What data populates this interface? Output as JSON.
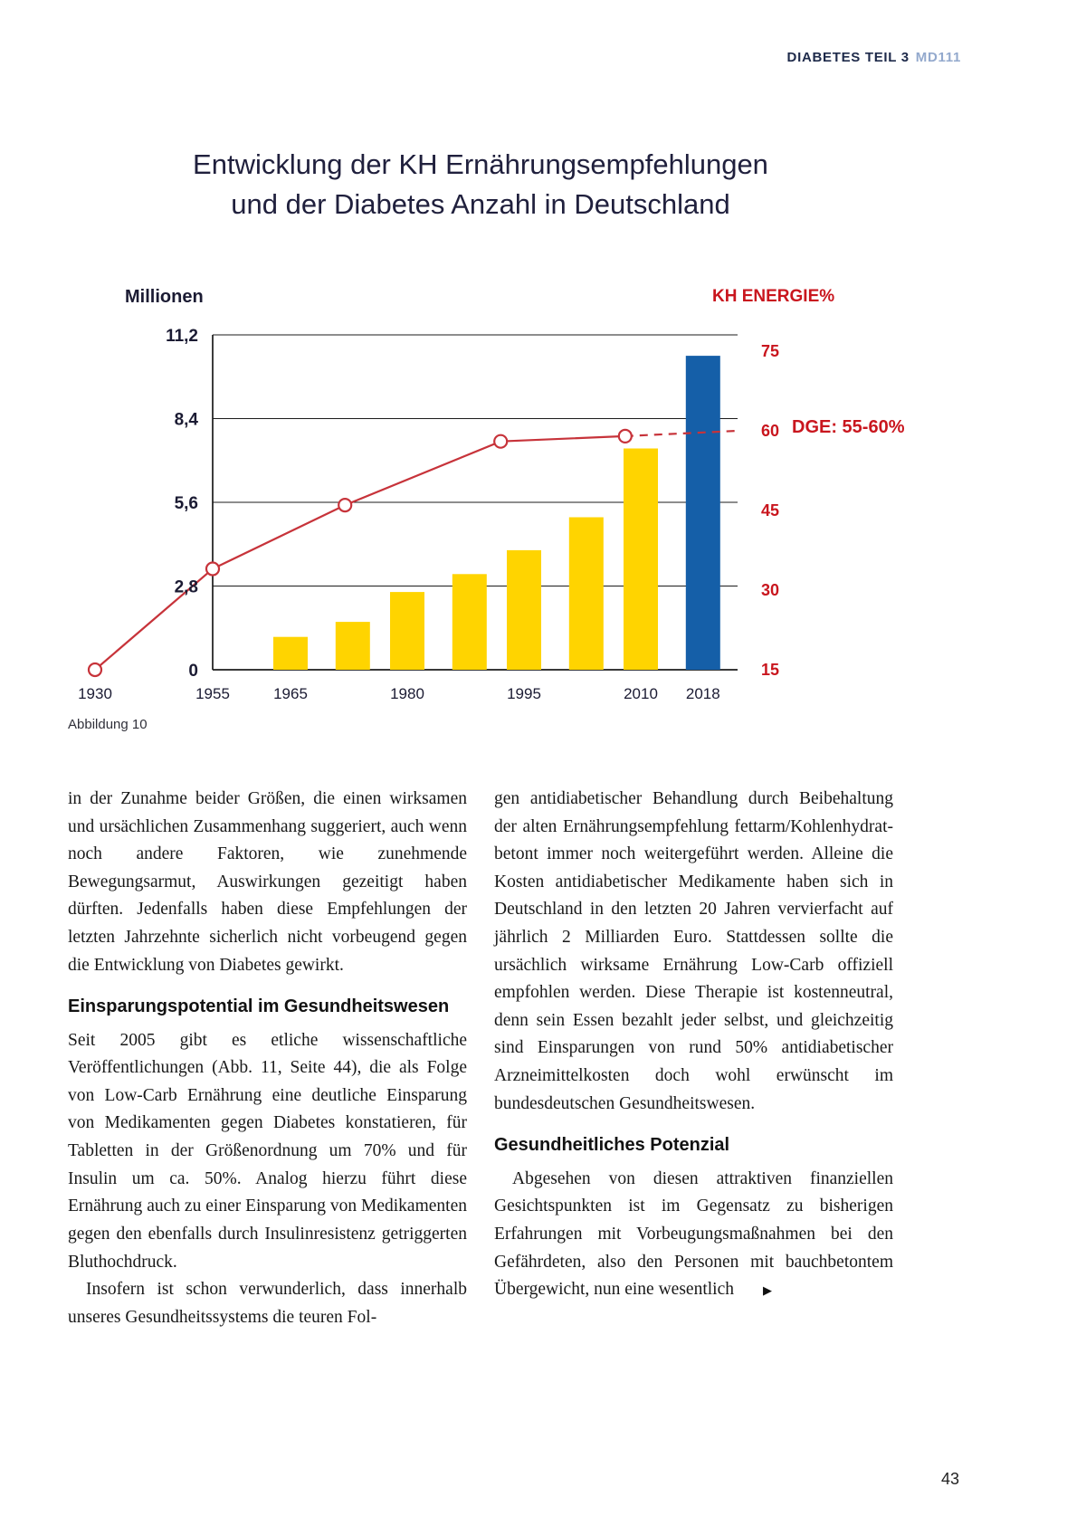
{
  "header": {
    "section": "DIABETES TEIL 3",
    "code": "MD111"
  },
  "title": {
    "line1": "Entwicklung der KH Ernährungsempfehlungen",
    "line2": "und der Diabetes Anzahl in Deutschland"
  },
  "figure": {
    "caption": "Abbildung 10"
  },
  "chart_data": {
    "type": "bar+line",
    "title": "Entwicklung der KH Ernährungsempfehlungen und der Diabetes Anzahl in Deutschland",
    "left_axis": {
      "label": "Millionen",
      "ticks": [
        "11,2",
        "8,4",
        "5,6",
        "2,8",
        "0"
      ],
      "tick_values": [
        11.2,
        8.4,
        5.6,
        2.8,
        0
      ],
      "max": 11.2
    },
    "right_axis": {
      "label": "KH ENERGIE%",
      "ticks": [
        "75",
        "60",
        "45",
        "30",
        "15"
      ],
      "tick_values": [
        75,
        60,
        45,
        30,
        15
      ],
      "min": 15,
      "max": 75
    },
    "x_tick_labels": [
      "1930",
      "1955",
      "1965",
      "1980",
      "1995",
      "2010",
      "2018"
    ],
    "x_tick_years": [
      1930,
      1955,
      1965,
      1980,
      1995,
      2010,
      2018
    ],
    "bars": {
      "name": "Diabetes Anzahl (Millionen)",
      "years": [
        1965,
        1973,
        1980,
        1988,
        1995,
        2003,
        2010,
        2018
      ],
      "values": [
        1.1,
        1.6,
        2.6,
        3.2,
        4.0,
        5.1,
        7.4,
        10.5
      ],
      "highlight_year": 2018
    },
    "line": {
      "name": "KH ENERGIE%",
      "years": [
        1930,
        1955,
        1972,
        1992,
        2008
      ],
      "values": [
        15,
        34,
        46,
        58,
        59
      ],
      "projection": {
        "value": 60
      }
    },
    "annotation": {
      "text": "DGE: 55-60%",
      "at_value": 60
    },
    "colors": {
      "bar": "#ffd400",
      "bar_highlight": "#155fa8",
      "line": "#c7333a",
      "accent_red": "#c9161e"
    },
    "grid": true,
    "legend": "none"
  },
  "articles": {
    "left": {
      "p1": "in der Zunahme beider Größen, die einen wirksamen und ursächlichen Zusammenhang suggeriert, auch wenn noch andere Faktoren, wie zunehmende Bewegungsarmut, Auswirkungen gezeitigt haben dürften. Jedenfalls haben diese Empfehlungen der letzten Jahrzehnte sicherlich nicht vorbeugend gegen die Entwicklung von Diabetes gewirkt.",
      "heading": "Einsparungspotential im Gesundheitswesen",
      "p2": "Seit 2005 gibt es etliche wissenschaftliche Veröffentlichungen (Abb. 11, Seite 44), die als Folge von Low-Carb Ernährung eine deutliche Einsparung von Medikamenten gegen Diabetes konstatieren, für Tabletten in der Größenordnung um 70% und für Insulin um ca. 50%. Analog hierzu führt diese Ernährung auch zu einer Einsparung von Medikamenten gegen den ebenfalls durch Insulinresistenz getriggerten Bluthochdruck.",
      "p3": "Insofern ist schon verwunderlich, dass innerhalb unseres Gesundheitssystems die teuren Fol-"
    },
    "right": {
      "p1": "gen antidiabetischer Behandlung durch Beibehaltung der alten Ernährungsempfehlung fettarm/Kohlenhydrat-betont immer noch weitergeführt werden. Alleine die Kosten antidiabetischer Medikamente haben sich in Deutschland in den letzten 20 Jahren vervierfacht auf jährlich 2 Milliarden Euro. Stattdessen sollte die ursächlich wirksame Ernährung Low-Carb offiziell empfohlen werden. Diese Therapie ist kostenneutral, denn sein Essen bezahlt jeder selbst, und gleichzeitig sind Einsparungen von rund 50% antidiabetischer Arzneimittelkosten doch wohl erwünscht im bundesdeutschen Gesundheitswesen.",
      "heading": "Gesundheitliches Potenzial",
      "p2": "Abgesehen von diesen attraktiven finanziellen Gesichtspunkten ist im Gegensatz zu bisherigen Erfahrungen mit Vorbeugungsmaßnahmen bei den Gefährdeten, also den Personen mit bauchbetontem Übergewicht, nun eine wesentlich",
      "marker": "▶"
    }
  },
  "footer": {
    "page_number": "43"
  }
}
